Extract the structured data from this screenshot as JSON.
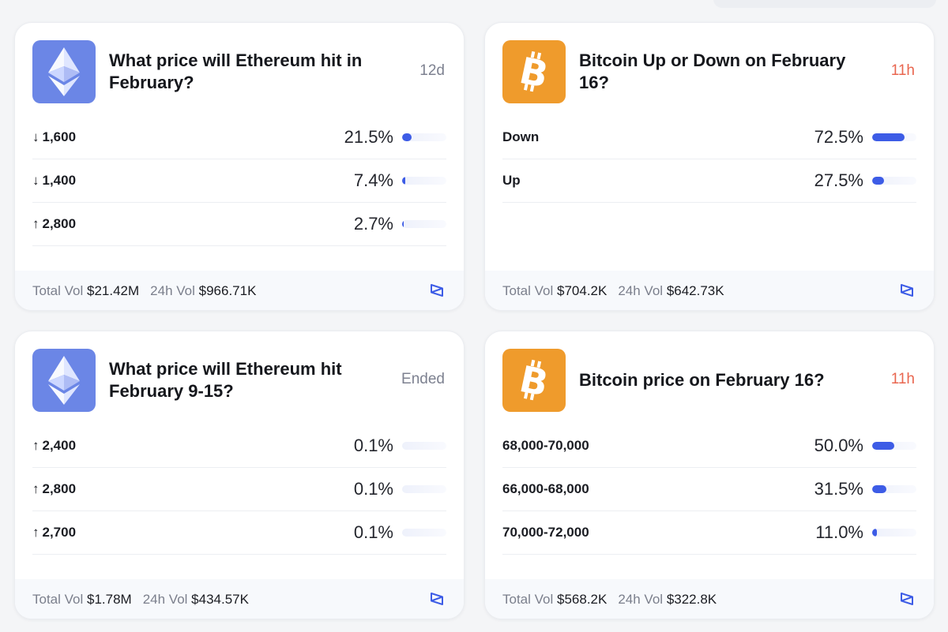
{
  "cards": [
    {
      "coin_icon": "ethereum-icon",
      "title": "What price will Ethereum hit in February?",
      "time": "12d",
      "rows": [
        {
          "arrow": "↓",
          "label": "1,600",
          "pct": "21.5%",
          "fill": 0.215
        },
        {
          "arrow": "↓",
          "label": "1,400",
          "pct": "7.4%",
          "fill": 0.074
        },
        {
          "arrow": "↑",
          "label": "2,800",
          "pct": "2.7%",
          "fill": 0.027
        }
      ],
      "total_vol_label": "Total Vol",
      "total_vol": "$21.42M",
      "vol24_label": "24h Vol",
      "vol24": "$966.71K"
    },
    {
      "coin_icon": "bitcoin-icon",
      "title": "Bitcoin Up or Down on February 16?",
      "time": "11h",
      "rows": [
        {
          "arrow": "",
          "label": "Down",
          "pct": "72.5%",
          "fill": 0.725
        },
        {
          "arrow": "",
          "label": "Up",
          "pct": "27.5%",
          "fill": 0.275
        }
      ],
      "total_vol_label": "Total Vol",
      "total_vol": "$704.2K",
      "vol24_label": "24h Vol",
      "vol24": "$642.73K"
    },
    {
      "coin_icon": "ethereum-icon",
      "title": "What price will Ethereum hit February 9-15?",
      "time": "Ended",
      "rows": [
        {
          "arrow": "↑",
          "label": "2,400",
          "pct": "0.1%",
          "fill": 0.001
        },
        {
          "arrow": "↑",
          "label": "2,800",
          "pct": "0.1%",
          "fill": 0.001
        },
        {
          "arrow": "↑",
          "label": "2,700",
          "pct": "0.1%",
          "fill": 0.001
        }
      ],
      "total_vol_label": "Total Vol",
      "total_vol": "$1.78M",
      "vol24_label": "24h Vol",
      "vol24": "$434.57K"
    },
    {
      "coin_icon": "bitcoin-icon",
      "title": "Bitcoin price on February 16?",
      "time": "11h",
      "rows": [
        {
          "arrow": "",
          "label": "68,000-70,000",
          "pct": "50.0%",
          "fill": 0.5
        },
        {
          "arrow": "",
          "label": "66,000-68,000",
          "pct": "31.5%",
          "fill": 0.315
        },
        {
          "arrow": "",
          "label": "70,000-72,000",
          "pct": "11.0%",
          "fill": 0.11
        }
      ],
      "total_vol_label": "Total Vol",
      "total_vol": "$568.2K",
      "vol24_label": "24h Vol",
      "vol24": "$322.8K"
    }
  ],
  "colors": {
    "ethereum": "#6b86e6",
    "bitcoin": "#ef9b2c",
    "bar": "#3d5ce6",
    "time_urgent": "#e9664f"
  }
}
